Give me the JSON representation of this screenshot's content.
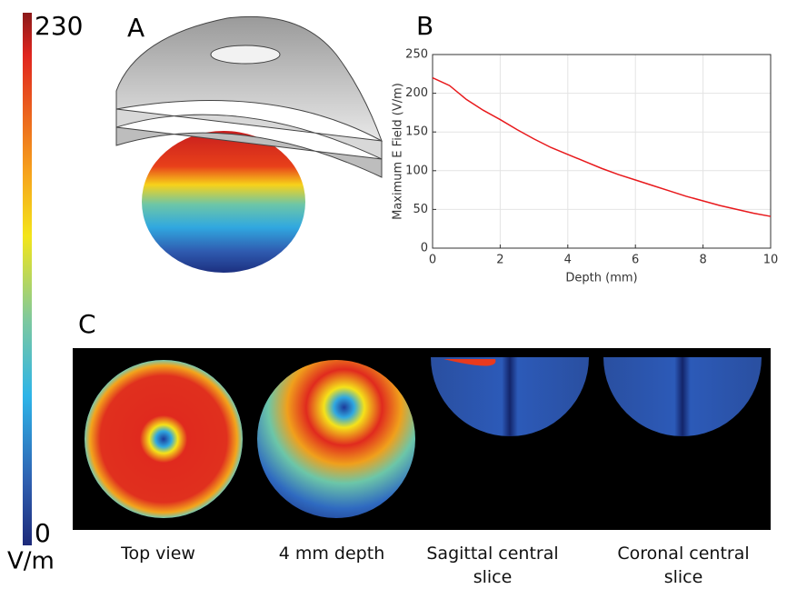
{
  "chart_data": {
    "type": "line",
    "xlabel": "Depth (mm)",
    "ylabel": "Maximum E Field (V/m)",
    "x": [
      0,
      0.5,
      1,
      1.5,
      2,
      2.5,
      3,
      3.5,
      4,
      4.5,
      5,
      5.5,
      6,
      6.5,
      7,
      7.5,
      8,
      8.5,
      9,
      9.5,
      10
    ],
    "series": [
      {
        "color": "#e8191c",
        "values": [
          220,
          210,
          192,
          178,
          166,
          153,
          141,
          130,
          121,
          112,
          103,
          95,
          88,
          81,
          74,
          67,
          61,
          55,
          50,
          45,
          41
        ]
      }
    ],
    "xlim": [
      0,
      10
    ],
    "xticks": [
      0,
      2,
      4,
      6,
      8,
      10
    ],
    "ylim": [
      0,
      250
    ],
    "yticks": [
      0,
      50,
      100,
      150,
      200,
      250
    ],
    "grid": true
  },
  "colorbar": {
    "max": 230,
    "min": 0,
    "unit": "V/m"
  },
  "panels": {
    "a": "A",
    "b": "B",
    "c": "C"
  },
  "captions": [
    "Top view",
    "4 mm depth",
    "Sagittal central slice",
    "Coronal central slice"
  ]
}
